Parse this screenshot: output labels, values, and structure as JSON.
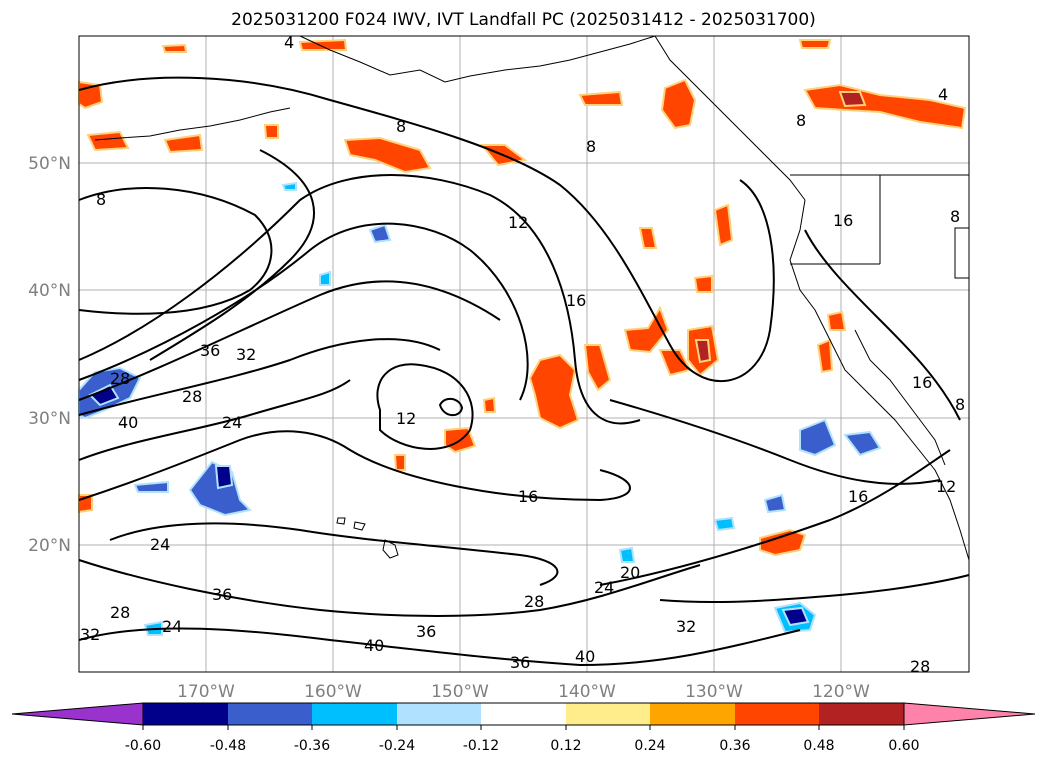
{
  "title": "2025031200 F024 IWV, IVT Landfall PC (2025031412 - 2025031700)",
  "map": {
    "lat_labels": [
      "50°N",
      "40°N",
      "30°N",
      "20°N"
    ],
    "lon_labels": [
      "170°W",
      "160°W",
      "150°W",
      "140°W",
      "130°W",
      "120°W"
    ],
    "contour_labels": [
      "4",
      "4",
      "8",
      "8",
      "8",
      "8",
      "12",
      "16",
      "16",
      "16",
      "16",
      "16",
      "20",
      "24",
      "24",
      "24",
      "24",
      "28",
      "28",
      "28",
      "28",
      "28",
      "32",
      "32",
      "32",
      "36",
      "36",
      "36",
      "36",
      "40",
      "40",
      "40",
      "12",
      "12",
      "8",
      "8"
    ],
    "contour_color": "#000000",
    "coastline_color": "#000000",
    "grid_color": "#b0b0b0"
  },
  "colorbar": {
    "ticks": [
      "-0.60",
      "-0.48",
      "-0.36",
      "-0.24",
      "-0.12",
      "0.12",
      "0.24",
      "0.36",
      "0.48",
      "0.60"
    ],
    "colors": [
      "#9a32cd",
      "#00008b",
      "#3a5fcd",
      "#00bfff",
      "#b0e2ff",
      "#ffffff",
      "#ffec8b",
      "#ffa500",
      "#ff4500",
      "#b22222",
      "#ff82ab"
    ]
  }
}
